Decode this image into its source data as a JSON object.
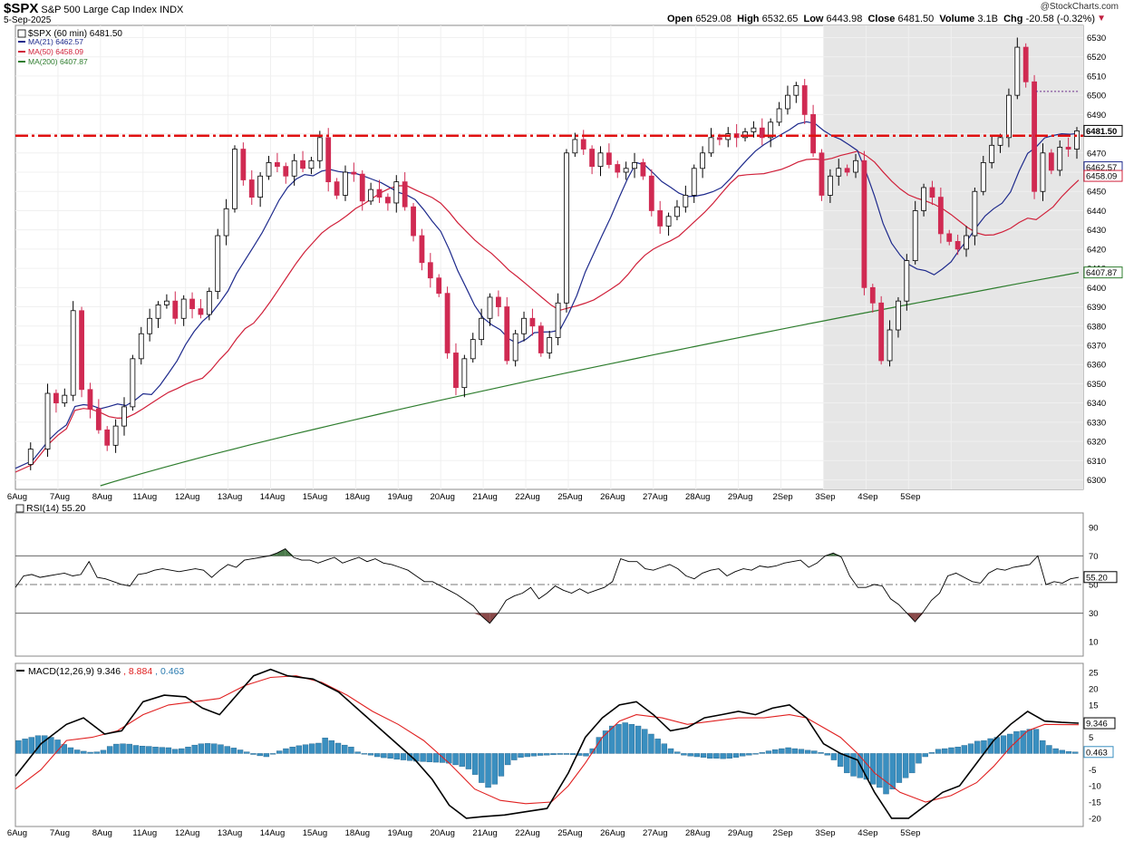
{
  "header": {
    "symbol": "$SPX",
    "name": "S&P 500 Large Cap Index",
    "exchange": "INDX",
    "date": "5-Sep-2025",
    "brand": "@StockCharts.com",
    "open_label": "Open",
    "open": "6529.08",
    "high_label": "High",
    "high": "6532.65",
    "low_label": "Low",
    "low": "6443.98",
    "close_label": "Close",
    "close": "6481.50",
    "volume_label": "Volume",
    "volume": "3.1B",
    "chg_label": "Chg",
    "chg": "-20.58 (-0.32%)",
    "chg_arrow": "▼"
  },
  "legend": {
    "price": "$SPX (60 min) 6481.50",
    "ma21": "MA(21) 6462.57",
    "ma50": "MA(50) 6458.09",
    "ma200": "MA(200) 6407.87"
  },
  "colors": {
    "up": "#ffffff",
    "down": "#d02a52",
    "ma21": "#1e2a8c",
    "ma50": "#d0203a",
    "ma200": "#2e7d2e",
    "resistance": "#e01010",
    "shade": "#e6e6e6",
    "hist": "#3a8fc0",
    "macd": "#000000",
    "signal": "#e02020",
    "rsi_hi": "#4a7a4a",
    "rsi_lo": "#8a4a4a"
  },
  "chart_data": [
    {
      "type": "candlestick",
      "title": "$SPX (60 min)",
      "x_dates": [
        "6Aug",
        "7Aug",
        "8Aug",
        "11Aug",
        "12Aug",
        "13Aug",
        "14Aug",
        "15Aug",
        "18Aug",
        "19Aug",
        "20Aug",
        "21Aug",
        "22Aug",
        "25Aug",
        "26Aug",
        "27Aug",
        "28Aug",
        "29Aug",
        "2Sep",
        "3Sep",
        "4Sep",
        "5Sep"
      ],
      "ylim": [
        6296,
        6534
      ],
      "yticks": [
        6300,
        6310,
        6320,
        6330,
        6340,
        6350,
        6360,
        6370,
        6380,
        6390,
        6400,
        6410,
        6420,
        6430,
        6440,
        6450,
        6460,
        6470,
        6480,
        6490,
        6500,
        6510,
        6520,
        6530
      ],
      "last_price_label": "6481.50",
      "ma_labels": {
        "ma21": "6462.57",
        "ma50": "6458.09",
        "ma200": "6407.87"
      },
      "resistance_level": 6479,
      "shaded_region": {
        "from": "2Sep",
        "to": "5Sep"
      },
      "price_path": [
        [
          0,
          6308
        ],
        [
          0.4,
          6316
        ],
        [
          0.8,
          6345
        ],
        [
          1.0,
          6340
        ],
        [
          1.2,
          6344
        ],
        [
          1.4,
          6388
        ],
        [
          1.6,
          6347
        ],
        [
          1.8,
          6337
        ],
        [
          2.0,
          6326
        ],
        [
          2.2,
          6318
        ],
        [
          2.4,
          6328
        ],
        [
          2.6,
          6338
        ],
        [
          2.8,
          6363
        ],
        [
          3.0,
          6376
        ],
        [
          3.2,
          6384
        ],
        [
          3.4,
          6391
        ],
        [
          3.6,
          6393
        ],
        [
          3.8,
          6384
        ],
        [
          4.0,
          6394
        ],
        [
          4.2,
          6389
        ],
        [
          4.4,
          6386
        ],
        [
          4.6,
          6398
        ],
        [
          4.8,
          6427
        ],
        [
          5.0,
          6441
        ],
        [
          5.2,
          6472
        ],
        [
          5.4,
          6456
        ],
        [
          5.6,
          6447
        ],
        [
          5.8,
          6458
        ],
        [
          6.0,
          6465
        ],
        [
          6.2,
          6463
        ],
        [
          6.4,
          6458
        ],
        [
          6.6,
          6466
        ],
        [
          6.8,
          6462
        ],
        [
          7.0,
          6466
        ],
        [
          7.2,
          6478
        ],
        [
          7.4,
          6455
        ],
        [
          7.6,
          6448
        ],
        [
          7.8,
          6460
        ],
        [
          8.0,
          6459
        ],
        [
          8.2,
          6445
        ],
        [
          8.4,
          6451
        ],
        [
          8.6,
          6447
        ],
        [
          8.8,
          6444
        ],
        [
          9.0,
          6455
        ],
        [
          9.2,
          6442
        ],
        [
          9.4,
          6427
        ],
        [
          9.6,
          6413
        ],
        [
          9.8,
          6405
        ],
        [
          10.0,
          6397
        ],
        [
          10.2,
          6366
        ],
        [
          10.4,
          6348
        ],
        [
          10.6,
          6363
        ],
        [
          10.8,
          6373
        ],
        [
          11.0,
          6384
        ],
        [
          11.2,
          6395
        ],
        [
          11.4,
          6390
        ],
        [
          11.6,
          6362
        ],
        [
          11.8,
          6376
        ],
        [
          12.0,
          6384
        ],
        [
          12.2,
          6380
        ],
        [
          12.4,
          6366
        ],
        [
          12.6,
          6374
        ],
        [
          12.8,
          6392
        ],
        [
          13.0,
          6470
        ],
        [
          13.2,
          6477
        ],
        [
          13.4,
          6472
        ],
        [
          13.6,
          6463
        ],
        [
          13.8,
          6470
        ],
        [
          14.0,
          6464
        ],
        [
          14.2,
          6460
        ],
        [
          14.4,
          6462
        ],
        [
          14.6,
          6465
        ],
        [
          14.8,
          6458
        ],
        [
          15.0,
          6440
        ],
        [
          15.2,
          6432
        ],
        [
          15.4,
          6437
        ],
        [
          15.6,
          6442
        ],
        [
          15.8,
          6448
        ],
        [
          16.0,
          6462
        ],
        [
          16.2,
          6470
        ],
        [
          16.4,
          6478
        ],
        [
          16.6,
          6477
        ],
        [
          16.8,
          6480
        ],
        [
          17.0,
          6478
        ],
        [
          17.2,
          6481
        ],
        [
          17.4,
          6483
        ],
        [
          17.6,
          6478
        ],
        [
          17.8,
          6486
        ],
        [
          18.0,
          6493
        ],
        [
          18.2,
          6500
        ],
        [
          18.4,
          6505
        ],
        [
          18.6,
          6490
        ],
        [
          18.8,
          6470
        ],
        [
          19.0,
          6448
        ],
        [
          19.2,
          6458
        ],
        [
          19.4,
          6462
        ],
        [
          19.6,
          6460
        ],
        [
          19.8,
          6466
        ],
        [
          20.0,
          6400
        ],
        [
          20.2,
          6392
        ],
        [
          20.4,
          6362
        ],
        [
          20.6,
          6378
        ],
        [
          20.8,
          6393
        ],
        [
          21.0,
          6414
        ],
        [
          21.2,
          6440
        ],
        [
          21.4,
          6452
        ],
        [
          21.6,
          6447
        ],
        [
          21.8,
          6428
        ],
        [
          22.0,
          6424
        ],
        [
          22.2,
          6420
        ],
        [
          22.4,
          6427
        ],
        [
          22.6,
          6450
        ],
        [
          22.8,
          6465
        ],
        [
          23.0,
          6474
        ],
        [
          23.2,
          6478
        ],
        [
          23.4,
          6500
        ],
        [
          23.6,
          6525
        ],
        [
          23.8,
          6507
        ],
        [
          24.0,
          6450
        ],
        [
          24.2,
          6470
        ],
        [
          24.4,
          6461
        ],
        [
          24.6,
          6473
        ],
        [
          24.8,
          6472
        ],
        [
          25.0,
          6481.5
        ]
      ]
    },
    {
      "type": "line",
      "title": "RSI(14) 55.20",
      "ylim": [
        0,
        100
      ],
      "yticks": [
        10,
        30,
        50,
        70,
        90
      ],
      "levels": [
        30,
        50,
        70
      ],
      "last_value_label": "55.20",
      "values": [
        48,
        56,
        57,
        55,
        56,
        57,
        58,
        56,
        57,
        66,
        55,
        54,
        52,
        50,
        49,
        57,
        58,
        60,
        61,
        60,
        59,
        60,
        61,
        60,
        55,
        60,
        64,
        62,
        67,
        68,
        69,
        70,
        72,
        75,
        69,
        67,
        67,
        65,
        67,
        69,
        65,
        67,
        69,
        66,
        68,
        65,
        64,
        62,
        60,
        56,
        52,
        52,
        49,
        46,
        43,
        39,
        35,
        28,
        23,
        30,
        39,
        42,
        44,
        48,
        40,
        44,
        49,
        46,
        44,
        47,
        44,
        46,
        48,
        52,
        68,
        66,
        66,
        61,
        60,
        62,
        64,
        61,
        56,
        54,
        58,
        60,
        61,
        56,
        59,
        61,
        60,
        63,
        62,
        63,
        65,
        66,
        67,
        62,
        65,
        70,
        72,
        69,
        56,
        48,
        48,
        50,
        49,
        40,
        36,
        30,
        24,
        31,
        39,
        44,
        56,
        58,
        55,
        52,
        51,
        58,
        61,
        60,
        62,
        63,
        64,
        70,
        50,
        52,
        51,
        54,
        55
      ]
    },
    {
      "type": "bar+line",
      "title": "MACD(12,26,9)",
      "macd_label": "9.346",
      "signal_label": "8.884",
      "hist_label": "0.463",
      "ylim": [
        -22,
        27
      ],
      "yticks": [
        -20,
        -15,
        -10,
        -5,
        0,
        5,
        10,
        15,
        20,
        25
      ],
      "macd": [
        [
          0,
          -7
        ],
        [
          0.6,
          3
        ],
        [
          1.2,
          9
        ],
        [
          1.6,
          11
        ],
        [
          2.1,
          6
        ],
        [
          2.5,
          7
        ],
        [
          3.0,
          16
        ],
        [
          3.5,
          18
        ],
        [
          4.0,
          17.5
        ],
        [
          4.4,
          14
        ],
        [
          4.8,
          12
        ],
        [
          5.2,
          18
        ],
        [
          5.6,
          24
        ],
        [
          6.0,
          26
        ],
        [
          6.4,
          24
        ],
        [
          7.0,
          23
        ],
        [
          7.6,
          19
        ],
        [
          8.2,
          12
        ],
        [
          8.8,
          5
        ],
        [
          9.4,
          -2
        ],
        [
          9.8,
          -8
        ],
        [
          10.2,
          -16
        ],
        [
          10.6,
          -20
        ],
        [
          11.0,
          -19.5
        ],
        [
          11.5,
          -19
        ],
        [
          12.0,
          -18
        ],
        [
          12.5,
          -17
        ],
        [
          13.0,
          -6
        ],
        [
          13.4,
          5
        ],
        [
          13.8,
          11
        ],
        [
          14.2,
          15
        ],
        [
          14.6,
          16
        ],
        [
          15.0,
          12
        ],
        [
          15.4,
          7
        ],
        [
          15.8,
          8
        ],
        [
          16.2,
          11
        ],
        [
          16.6,
          12
        ],
        [
          17.0,
          13
        ],
        [
          17.4,
          12
        ],
        [
          17.8,
          14
        ],
        [
          18.2,
          15
        ],
        [
          18.6,
          11
        ],
        [
          19.0,
          3
        ],
        [
          19.4,
          0
        ],
        [
          19.8,
          -2
        ],
        [
          20.2,
          -12
        ],
        [
          20.6,
          -20
        ],
        [
          21.0,
          -20
        ],
        [
          21.4,
          -16
        ],
        [
          21.8,
          -12
        ],
        [
          22.2,
          -10
        ],
        [
          22.6,
          -3
        ],
        [
          23.0,
          4
        ],
        [
          23.4,
          9
        ],
        [
          23.8,
          13
        ],
        [
          24.2,
          10
        ],
        [
          24.6,
          9.6
        ],
        [
          25.0,
          9.346
        ]
      ],
      "signal": [
        [
          0,
          -11
        ],
        [
          0.6,
          -5
        ],
        [
          1.2,
          4
        ],
        [
          1.8,
          5
        ],
        [
          2.4,
          7
        ],
        [
          3.0,
          12
        ],
        [
          3.6,
          15
        ],
        [
          4.2,
          16
        ],
        [
          4.8,
          17
        ],
        [
          5.4,
          21
        ],
        [
          6.0,
          23.5
        ],
        [
          6.6,
          24
        ],
        [
          7.2,
          22
        ],
        [
          7.8,
          18
        ],
        [
          8.4,
          13
        ],
        [
          9.0,
          9
        ],
        [
          9.6,
          4
        ],
        [
          10.2,
          -3
        ],
        [
          10.8,
          -11
        ],
        [
          11.4,
          -14.5
        ],
        [
          12.0,
          -15.5
        ],
        [
          12.6,
          -15
        ],
        [
          13.0,
          -10
        ],
        [
          13.4,
          -3
        ],
        [
          13.8,
          5
        ],
        [
          14.2,
          10
        ],
        [
          14.6,
          12
        ],
        [
          15.2,
          11
        ],
        [
          15.8,
          9
        ],
        [
          16.4,
          10
        ],
        [
          17.0,
          11
        ],
        [
          17.6,
          11
        ],
        [
          18.2,
          12
        ],
        [
          18.6,
          11
        ],
        [
          19.0,
          8
        ],
        [
          19.4,
          5
        ],
        [
          19.8,
          0
        ],
        [
          20.2,
          -6
        ],
        [
          20.8,
          -12
        ],
        [
          21.4,
          -15
        ],
        [
          22.0,
          -13
        ],
        [
          22.6,
          -9
        ],
        [
          23.0,
          -4
        ],
        [
          23.4,
          2
        ],
        [
          23.8,
          7
        ],
        [
          24.2,
          9
        ],
        [
          24.6,
          8.9
        ],
        [
          25.0,
          8.884
        ]
      ],
      "histogram": [
        4.0,
        4.5,
        5.0,
        5.5,
        5.5,
        5.0,
        4.2,
        2.8,
        1.8,
        1.1,
        0.7,
        0.4,
        0.5,
        1.0,
        2.2,
        2.9,
        3.0,
        2.9,
        2.5,
        2.3,
        2.2,
        2.0,
        1.9,
        1.8,
        1.3,
        1.5,
        2.0,
        2.6,
        3.0,
        3.1,
        3.0,
        2.7,
        2.2,
        1.7,
        1.1,
        0.5,
        -0.3,
        -0.7,
        -1.0,
        0.0,
        0.8,
        1.5,
        2.0,
        2.4,
        2.7,
        3.0,
        3.2,
        4.8,
        4.0,
        3.2,
        2.6,
        2.0,
        0.5,
        -0.2,
        -0.5,
        -1.0,
        -1.3,
        -1.5,
        -1.8,
        -2.0,
        -2.2,
        -2.4,
        -2.5,
        -2.6,
        -2.7,
        -2.8,
        -3.0,
        -3.5,
        -4.0,
        -4.8,
        -6.5,
        -9.0,
        -10.5,
        -9.5,
        -7.0,
        -3.5,
        -2.0,
        -1.2,
        -1.0,
        -0.8,
        -0.6,
        -0.5,
        -0.4,
        -0.3,
        -0.3,
        -0.4,
        -0.6,
        -0.8,
        1.5,
        5.0,
        7.0,
        8.5,
        9.0,
        9.5,
        9.0,
        8.5,
        7.5,
        6.0,
        4.5,
        3.0,
        1.5,
        0.5,
        -0.5,
        -0.8,
        -1.0,
        -1.2,
        -1.5,
        -1.5,
        -1.6,
        -1.5,
        -1.2,
        -0.8,
        -0.5,
        -0.2,
        0.3,
        0.8,
        1.2,
        1.5,
        1.8,
        1.5,
        1.3,
        1.0,
        0.8,
        0.3,
        -0.5,
        -2.0,
        -4.0,
        -6.0,
        -7.0,
        -7.5,
        -8.0,
        -9.5,
        -10.5,
        -12.5,
        -11.0,
        -9.0,
        -7.5,
        -6.0,
        -3.0,
        -1.0,
        0.3,
        1.3,
        1.5,
        1.8,
        2.0,
        2.5,
        3.0,
        3.8,
        4.0,
        4.6,
        5.0,
        5.5,
        6.0,
        6.8,
        7.0,
        7.5,
        7.5,
        4.0,
        2.5,
        1.5,
        1.0,
        0.6,
        0.463
      ]
    }
  ]
}
